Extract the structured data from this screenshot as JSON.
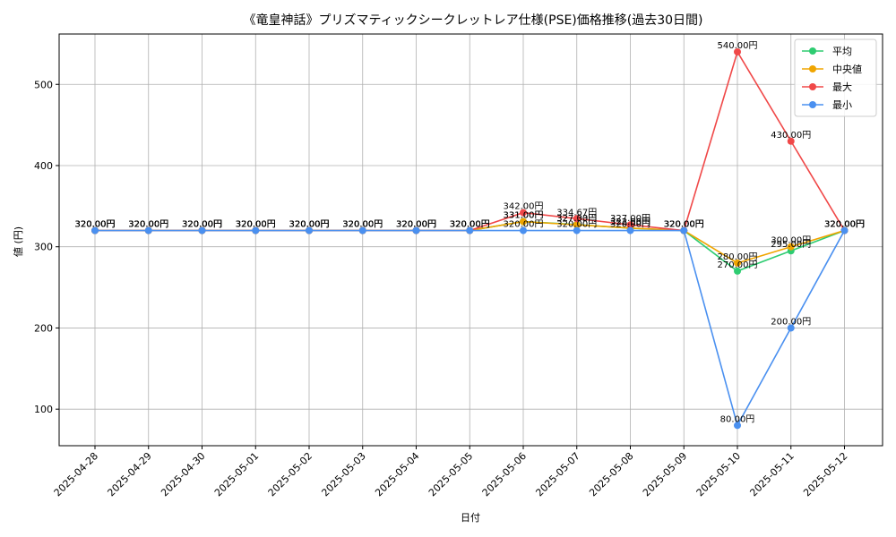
{
  "chart_data": {
    "type": "line",
    "title": "《竜皇神話》プリズマティックシークレットレア仕様(PSE)価格推移(過去30日間)",
    "xlabel": "日付",
    "ylabel": "値 (円)",
    "ylim": [
      55,
      562
    ],
    "yticks": [
      100,
      200,
      300,
      400,
      500
    ],
    "grid": true,
    "legend_position": "top-right",
    "label_suffix": "円",
    "categories": [
      "2025-04-28",
      "2025-04-29",
      "2025-04-30",
      "2025-05-01",
      "2025-05-02",
      "2025-05-03",
      "2025-05-04",
      "2025-05-05",
      "2025-05-06",
      "2025-05-07",
      "2025-05-08",
      "2025-05-09",
      "2025-05-10",
      "2025-05-11",
      "2025-05-12"
    ],
    "series": [
      {
        "name": "平均",
        "color": "#2ecc71",
        "values": [
          320,
          320,
          320,
          320,
          320,
          320,
          320,
          320,
          331,
          327.33,
          322.83,
          320,
          270,
          295,
          320
        ]
      },
      {
        "name": "中央値",
        "color": "#f0a500",
        "values": [
          320,
          320,
          320,
          320,
          320,
          320,
          320,
          320,
          331,
          327,
          323,
          320,
          280,
          300,
          320
        ]
      },
      {
        "name": "最大",
        "color": "#f04848",
        "values": [
          320,
          320,
          320,
          320,
          320,
          320,
          320,
          320,
          342,
          334.67,
          327,
          320,
          540,
          430,
          320
        ]
      },
      {
        "name": "最小",
        "color": "#4a90f0",
        "values": [
          320,
          320,
          320,
          320,
          320,
          320,
          320,
          320,
          320,
          320,
          320,
          320,
          80,
          200,
          320
        ]
      }
    ]
  }
}
